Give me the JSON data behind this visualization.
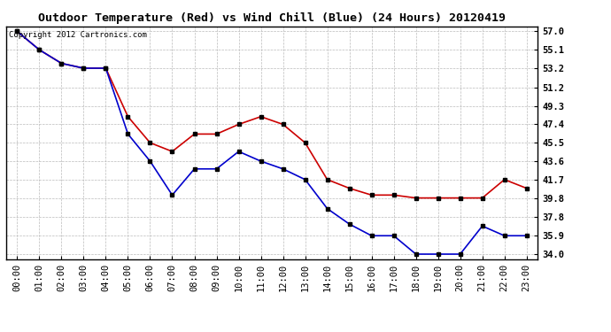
{
  "title": "Outdoor Temperature (Red) vs Wind Chill (Blue) (24 Hours) 20120419",
  "copyright_text": "Copyright 2012 Cartronics.com",
  "x_labels": [
    "00:00",
    "01:00",
    "02:00",
    "03:00",
    "04:00",
    "05:00",
    "06:00",
    "07:00",
    "08:00",
    "09:00",
    "10:00",
    "11:00",
    "12:00",
    "13:00",
    "14:00",
    "15:00",
    "16:00",
    "17:00",
    "18:00",
    "19:00",
    "20:00",
    "21:00",
    "22:00",
    "23:00"
  ],
  "red_temps": [
    57.0,
    55.1,
    53.7,
    53.2,
    53.2,
    48.2,
    45.5,
    44.6,
    46.4,
    46.4,
    47.4,
    48.2,
    47.4,
    45.5,
    41.7,
    40.8,
    40.1,
    40.1,
    39.8,
    39.8,
    39.8,
    39.8,
    41.7,
    40.8
  ],
  "blue_temps": [
    57.0,
    55.1,
    53.7,
    53.2,
    53.2,
    46.4,
    43.6,
    40.1,
    42.8,
    42.8,
    44.6,
    43.6,
    42.8,
    41.7,
    38.7,
    37.1,
    35.9,
    35.9,
    34.0,
    34.0,
    34.0,
    36.9,
    35.9,
    35.9
  ],
  "y_ticks": [
    34.0,
    35.9,
    37.8,
    39.8,
    41.7,
    43.6,
    45.5,
    47.4,
    49.3,
    51.2,
    53.2,
    55.1,
    57.0
  ],
  "ylim": [
    33.5,
    57.5
  ],
  "xlim": [
    -0.5,
    23.5
  ],
  "background_color": "#ffffff",
  "grid_color": "#bbbbbb",
  "red_color": "#cc0000",
  "blue_color": "#0000cc",
  "marker_color": "#000000",
  "title_fontsize": 9.5,
  "copyright_fontsize": 6.5,
  "tick_fontsize": 7.5,
  "marker_size": 3.5,
  "linewidth": 1.2
}
